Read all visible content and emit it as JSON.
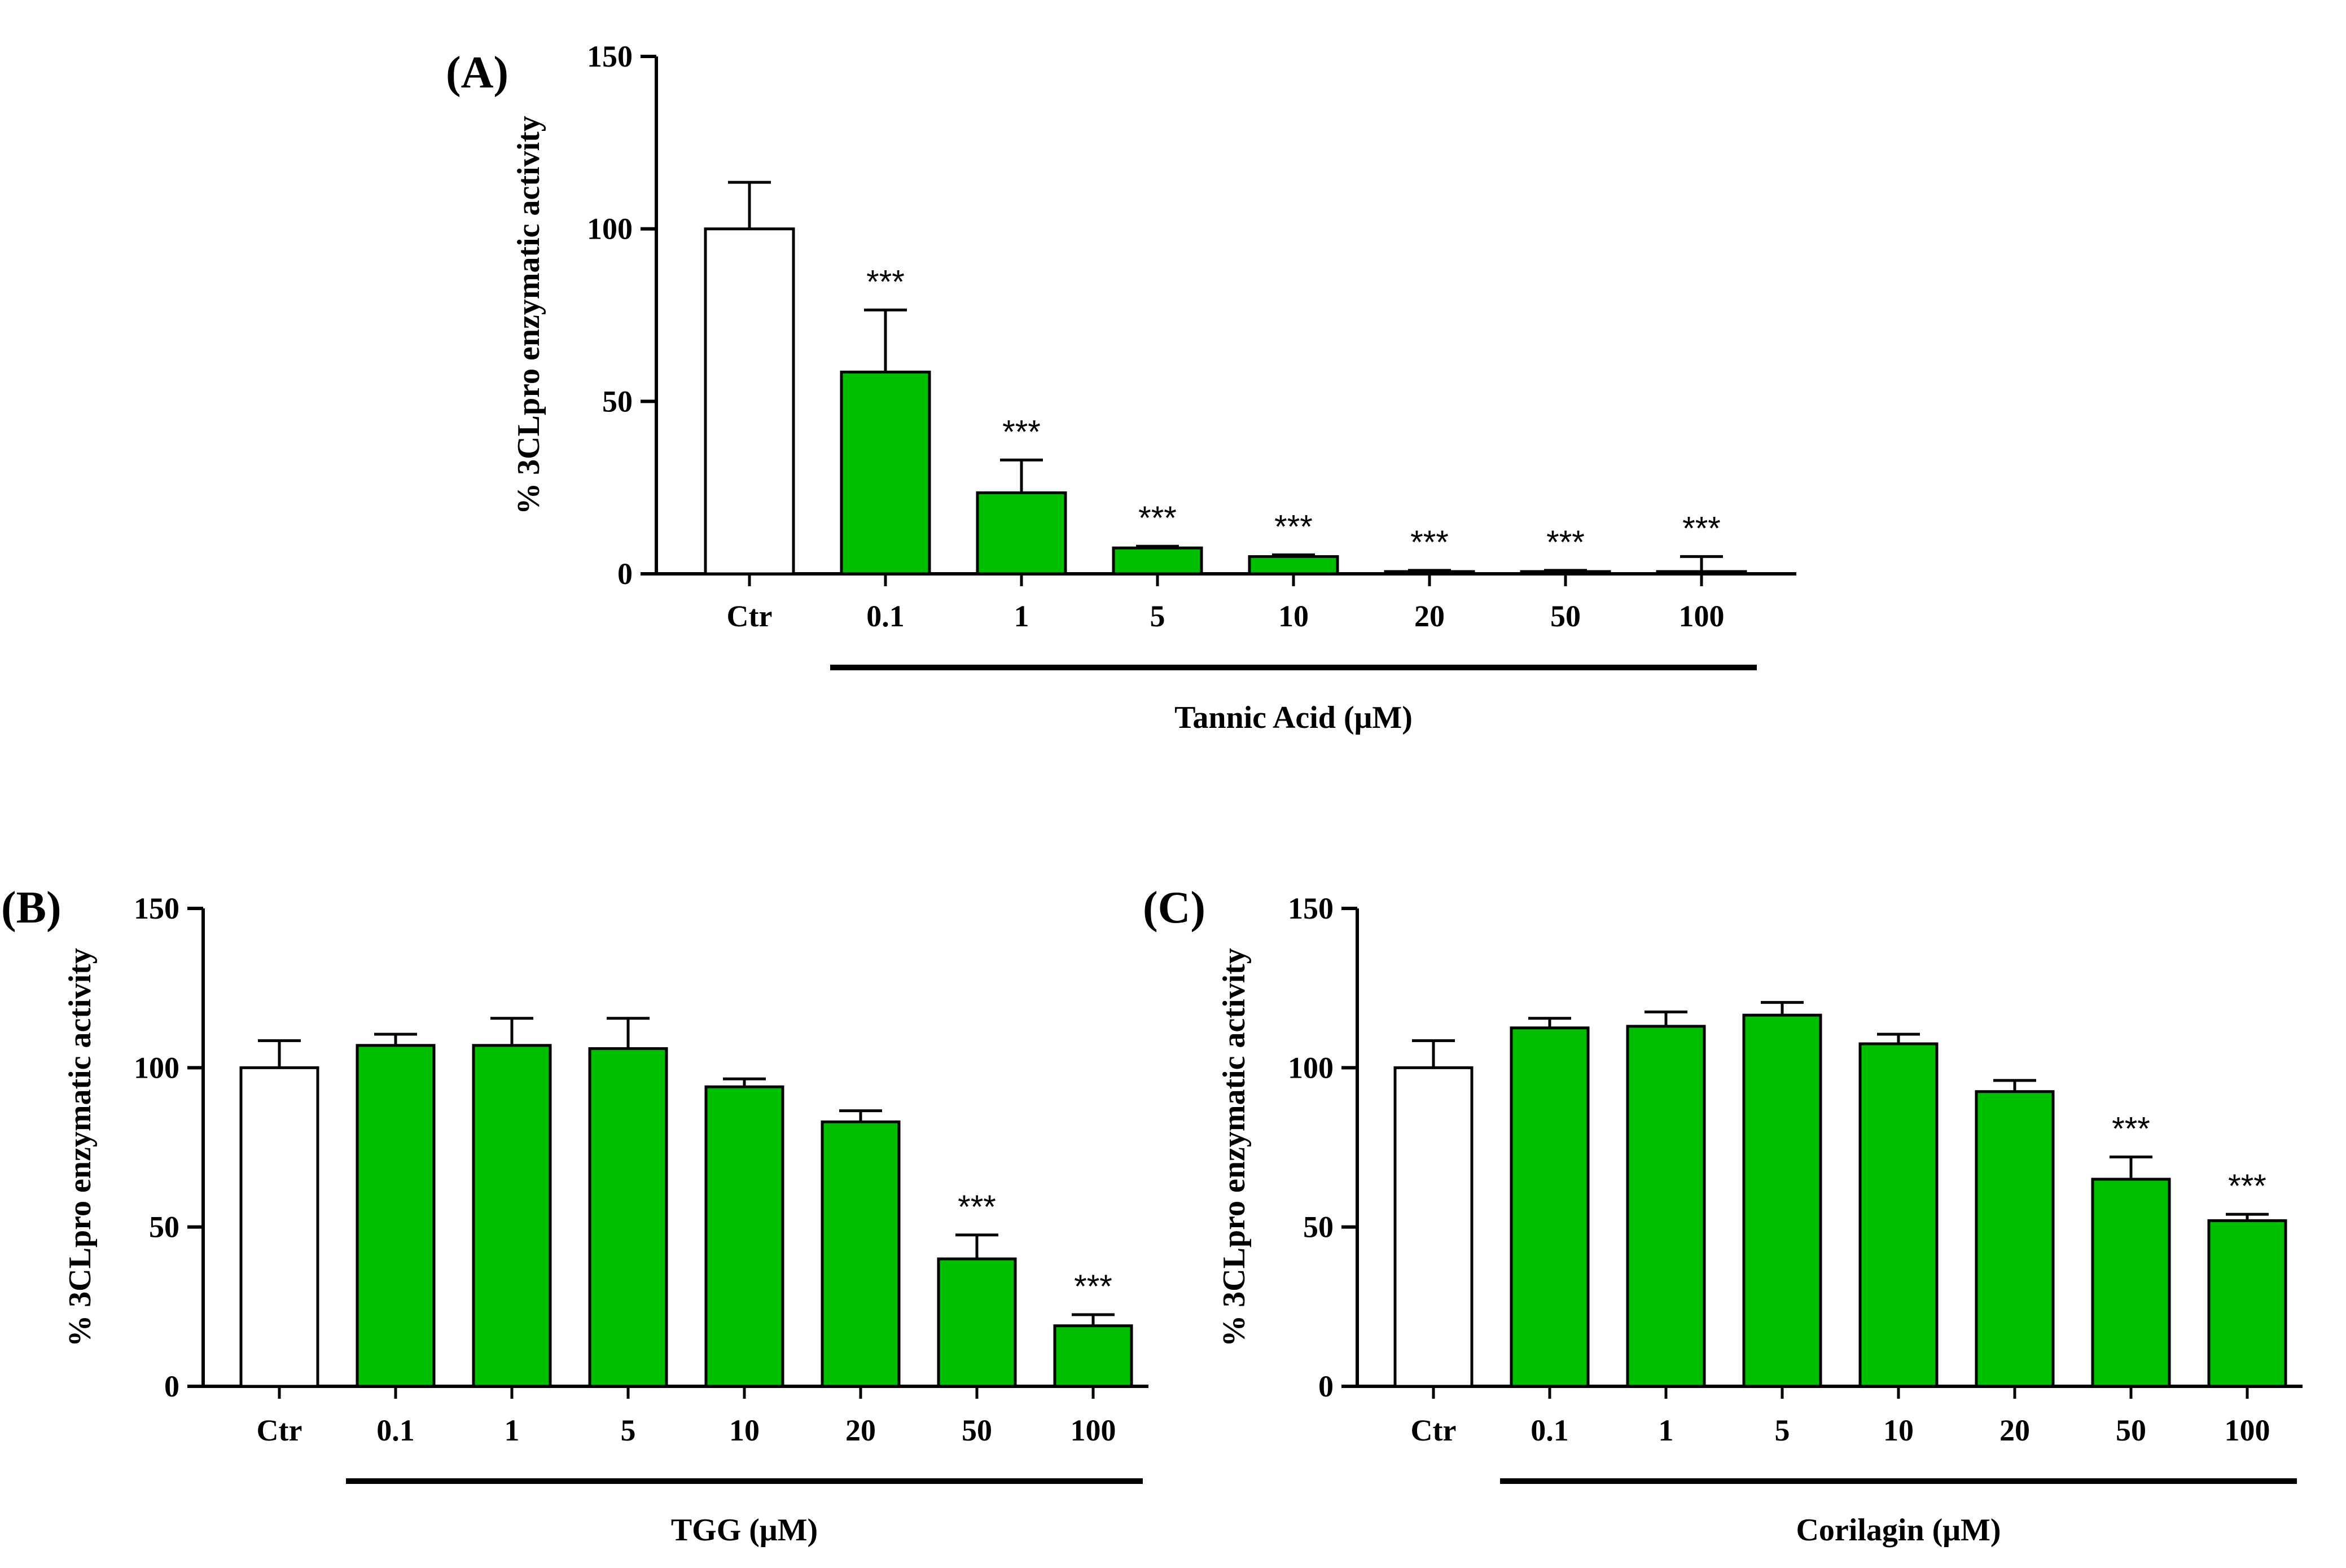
{
  "chart_data": [
    {
      "type": "bar",
      "panel": "(A)",
      "ylabel": "% 3CLpro enzymatic activity",
      "xlabel": "Tannic Acid (μM)",
      "ylim": [
        0,
        150
      ],
      "yticks": [
        0,
        50,
        100,
        150
      ],
      "categories": [
        "Ctr",
        "0.1",
        "1",
        "5",
        "10",
        "20",
        "50",
        "100"
      ],
      "series": [
        {
          "name": "Tannic Acid",
          "values": [
            100,
            58.5,
            23.5,
            7.5,
            5,
            0.5,
            0.5,
            0.5
          ],
          "errors": [
            13.5,
            18,
            9.5,
            0.5,
            0.5,
            0.5,
            0.5,
            4.5
          ],
          "colors": [
            "#ffffff",
            "#00bf00",
            "#00bf00",
            "#00bf00",
            "#00bf00",
            "#00bf00",
            "#00bf00",
            "#00bf00"
          ],
          "significance": [
            "",
            "***",
            "***",
            "***",
            "***",
            "***",
            "***",
            "***"
          ]
        }
      ],
      "treatment_bar_range": [
        "0.1",
        "100"
      ]
    },
    {
      "type": "bar",
      "panel": "(B)",
      "ylabel": "% 3CLpro enzymatic activity",
      "xlabel": "TGG (μM)",
      "ylim": [
        0,
        150
      ],
      "yticks": [
        0,
        50,
        100,
        150
      ],
      "categories": [
        "Ctr",
        "0.1",
        "1",
        "5",
        "10",
        "20",
        "50",
        "100"
      ],
      "series": [
        {
          "name": "TGG",
          "values": [
            100,
            107,
            107,
            106,
            94,
            83,
            40,
            19
          ],
          "errors": [
            8.5,
            3.5,
            8.5,
            9.5,
            2.5,
            3.5,
            7.5,
            3.5
          ],
          "colors": [
            "#ffffff",
            "#00bf00",
            "#00bf00",
            "#00bf00",
            "#00bf00",
            "#00bf00",
            "#00bf00",
            "#00bf00"
          ],
          "significance": [
            "",
            "",
            "",
            "",
            "",
            "",
            "***",
            "***"
          ]
        }
      ],
      "treatment_bar_range": [
        "0.1",
        "100"
      ]
    },
    {
      "type": "bar",
      "panel": "(C)",
      "ylabel": "% 3CLpro enzymatic activity",
      "xlabel": "Corilagin (μM)",
      "ylim": [
        0,
        150
      ],
      "yticks": [
        0,
        50,
        100,
        150
      ],
      "categories": [
        "Ctr",
        "0.1",
        "1",
        "5",
        "10",
        "20",
        "50",
        "100"
      ],
      "series": [
        {
          "name": "Corilagin",
          "values": [
            100,
            112.5,
            113,
            116.5,
            107.5,
            92.5,
            65,
            52
          ],
          "errors": [
            8.5,
            3,
            4.5,
            4,
            3,
            3.5,
            7,
            2
          ],
          "colors": [
            "#ffffff",
            "#00bf00",
            "#00bf00",
            "#00bf00",
            "#00bf00",
            "#00bf00",
            "#00bf00",
            "#00bf00"
          ],
          "significance": [
            "",
            "",
            "",
            "",
            "",
            "",
            "***",
            "***"
          ]
        }
      ],
      "treatment_bar_range": [
        "0.1",
        "100"
      ]
    }
  ]
}
